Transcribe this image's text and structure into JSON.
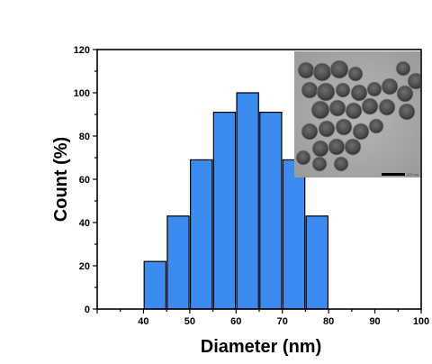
{
  "chart_data": {
    "type": "bar",
    "xlabel": "Diameter (nm)",
    "ylabel": "Count (%)",
    "xlim": [
      30,
      100
    ],
    "ylim": [
      0,
      120
    ],
    "xticks": [
      40,
      50,
      60,
      70,
      80,
      90,
      100
    ],
    "yticks": [
      0,
      20,
      40,
      60,
      80,
      100,
      120
    ],
    "bin_width": 5,
    "bars": [
      {
        "center": 42.5,
        "value": 22
      },
      {
        "center": 47.5,
        "value": 43
      },
      {
        "center": 52.5,
        "value": 69
      },
      {
        "center": 57.5,
        "value": 91
      },
      {
        "center": 62.5,
        "value": 100
      },
      {
        "center": 67.5,
        "value": 91
      },
      {
        "center": 72.5,
        "value": 69
      },
      {
        "center": 77.5,
        "value": 43
      }
    ],
    "bar_color": "#3c8cf0",
    "bar_edge_color": "#000000",
    "grid": false,
    "legend": "none"
  },
  "inset": {
    "description": "TEM micrograph of spherical nanoparticles",
    "scale_bar_caption": "100 nm"
  }
}
